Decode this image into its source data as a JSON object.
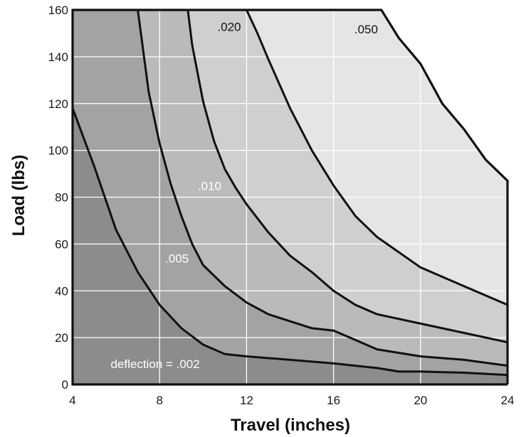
{
  "chart_data": {
    "type": "area",
    "title": "",
    "xlabel": "Travel (inches)",
    "ylabel": "Load (lbs)",
    "xlim": [
      4,
      24
    ],
    "ylim": [
      0,
      160
    ],
    "xticks": [
      {
        "value": 4,
        "label": "4"
      },
      {
        "value": 8,
        "label": "8"
      },
      {
        "value": 12,
        "label": "12"
      },
      {
        "value": 16,
        "label": "16"
      },
      {
        "value": 20,
        "label": "20"
      },
      {
        "value": 24,
        "label": "24"
      }
    ],
    "yticks": [
      {
        "value": 0,
        "label": "0"
      },
      {
        "value": 20,
        "label": "20"
      },
      {
        "value": 40,
        "label": "40"
      },
      {
        "value": 60,
        "label": "60"
      },
      {
        "value": 80,
        "label": "80"
      },
      {
        "value": 100,
        "label": "100"
      },
      {
        "value": 120,
        "label": "120"
      },
      {
        "value": 140,
        "label": "140"
      },
      {
        "value": 160,
        "label": "160"
      }
    ],
    "grid": true,
    "series": [
      {
        "x": [
          4,
          5,
          6,
          7,
          8,
          9,
          10,
          11,
          12,
          14,
          16,
          18,
          19,
          20,
          22,
          24
        ],
        "y": [
          118,
          93,
          66,
          48,
          34,
          24,
          17,
          13,
          12,
          10.5,
          9,
          7,
          5.5,
          5.5,
          5,
          4
        ]
      },
      {
        "x": [
          7,
          7.5,
          8,
          8.5,
          9,
          9.5,
          10,
          11,
          12,
          13,
          14,
          15,
          16,
          17,
          18,
          20,
          22,
          24
        ],
        "y": [
          160,
          125,
          103,
          86,
          72,
          60,
          51,
          42,
          35,
          30,
          27,
          24,
          23,
          19,
          15,
          12,
          10.5,
          8
        ]
      },
      {
        "x": [
          9.3,
          9.5,
          10,
          10.5,
          11,
          11.5,
          12,
          13,
          14,
          15,
          16,
          17,
          18,
          20,
          22,
          24
        ],
        "y": [
          160,
          145,
          121,
          104,
          92,
          84,
          77,
          65,
          55,
          48,
          40,
          34,
          30,
          26,
          22,
          18
        ]
      },
      {
        "x": [
          12,
          12.5,
          13,
          14,
          15,
          16,
          17,
          18,
          20,
          22,
          24
        ],
        "y": [
          160,
          150,
          139,
          118,
          100,
          85,
          72,
          63,
          50,
          42,
          34
        ]
      }
    ],
    "boundary": {
      "x": [
        18.2,
        19,
        20,
        21,
        22,
        23,
        24
      ],
      "y": [
        160,
        148,
        137,
        120,
        109,
        96,
        87
      ]
    },
    "contour_labels": [
      {
        "text": "deflection = .002",
        "x": 7.8,
        "y": 7
      },
      {
        "text": ".005",
        "x": 8.8,
        "y": 52
      },
      {
        "text": ".010",
        "x": 10.3,
        "y": 83
      },
      {
        "text": ".020",
        "x": 11.2,
        "y": 151
      },
      {
        "text": ".050",
        "x": 17.5,
        "y": 150
      }
    ],
    "colors": {
      "band_002": "#8c8c8e",
      "band_005": "#a3a3a5",
      "band_010": "#bababc",
      "band_020": "#cfcfd1",
      "band_050": "#e5e5e7",
      "line": "#111111",
      "grid": "#ffffff"
    }
  }
}
